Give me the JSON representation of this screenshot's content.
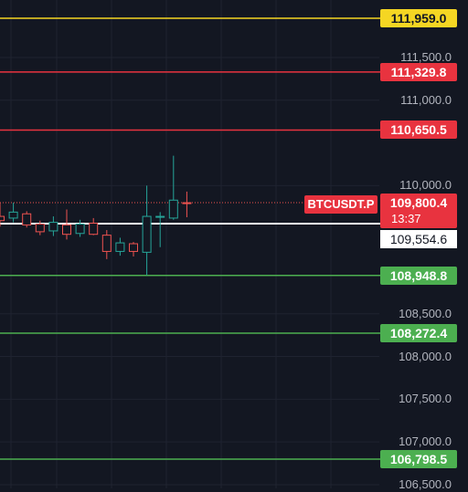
{
  "symbol": "BTCUSDT.P",
  "last_price": "109,800.4",
  "countdown": "13:37",
  "colors": {
    "background": "#131722",
    "grid": "#1F2330",
    "up": "#26A69A",
    "down": "#EF5350",
    "yellow_level": "#F5D623",
    "red_level": "#E8333F",
    "green_level": "#4CAF50",
    "white_level": "#FFFFFF"
  },
  "axis_ticks": [
    "111,500.0",
    "111,000.0",
    "110,000.0",
    "108,500.0",
    "108,000.0",
    "107,500.0",
    "107,000.0",
    "106,500.0"
  ],
  "axis_tick_values": [
    111500,
    111000,
    110000,
    108500,
    108000,
    107500,
    107000,
    106500
  ],
  "levels": [
    {
      "label": "111,959.0",
      "value": 111959.0,
      "color": "yellow"
    },
    {
      "label": "111,329.8",
      "value": 111329.8,
      "color": "red"
    },
    {
      "label": "110,650.5",
      "value": 110650.5,
      "color": "red"
    },
    {
      "label": "109,554.6",
      "value": 109554.6,
      "color": "white"
    },
    {
      "label": "108,948.8",
      "value": 108948.8,
      "color": "green"
    },
    {
      "label": "108,272.4",
      "value": 108272.4,
      "color": "green"
    },
    {
      "label": "106,798.5",
      "value": 106798.5,
      "color": "green"
    }
  ],
  "candles": [
    {
      "o": 109640,
      "h": 109800,
      "l": 109520,
      "c": 109590
    },
    {
      "o": 109620,
      "h": 109800,
      "l": 109570,
      "c": 109690
    },
    {
      "o": 109670,
      "h": 109700,
      "l": 109510,
      "c": 109540
    },
    {
      "o": 109550,
      "h": 109590,
      "l": 109420,
      "c": 109460
    },
    {
      "o": 109470,
      "h": 109640,
      "l": 109410,
      "c": 109570
    },
    {
      "o": 109540,
      "h": 109720,
      "l": 109370,
      "c": 109430
    },
    {
      "o": 109440,
      "h": 109600,
      "l": 109400,
      "c": 109550
    },
    {
      "o": 109560,
      "h": 109620,
      "l": 109420,
      "c": 109430
    },
    {
      "o": 109420,
      "h": 109480,
      "l": 109140,
      "c": 109230
    },
    {
      "o": 109230,
      "h": 109390,
      "l": 109180,
      "c": 109330
    },
    {
      "o": 109320,
      "h": 109340,
      "l": 109170,
      "c": 109230
    },
    {
      "o": 109220,
      "h": 110000,
      "l": 108950,
      "c": 109640
    },
    {
      "o": 109630,
      "h": 109690,
      "l": 109280,
      "c": 109640
    },
    {
      "o": 109620,
      "h": 110350,
      "l": 109600,
      "c": 109830
    },
    {
      "o": 109800,
      "h": 109930,
      "l": 109630,
      "c": 109790
    }
  ]
}
